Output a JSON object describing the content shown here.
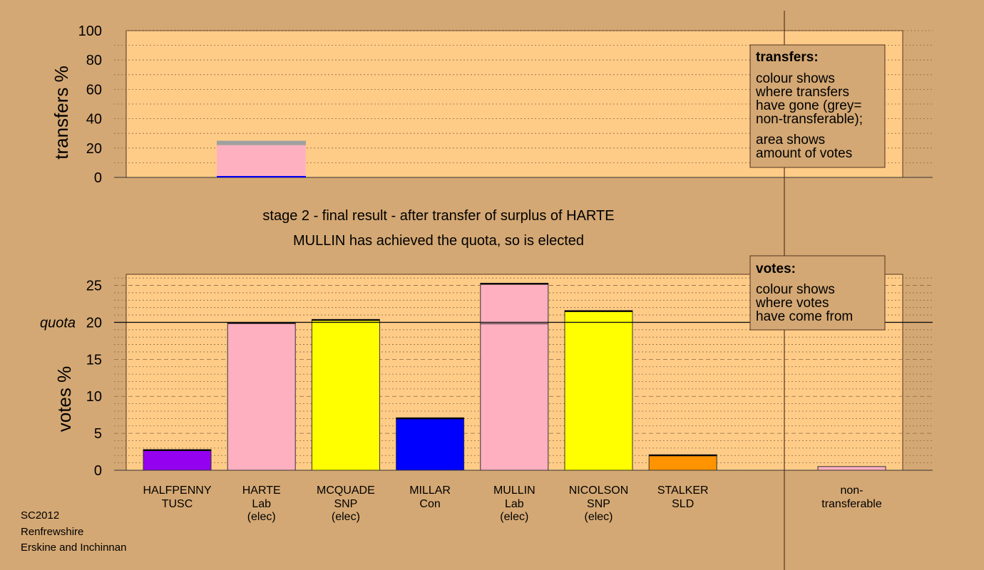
{
  "header": {
    "stage_line": "stage 2 - final result - after transfer of surplus of HARTE",
    "result_line": "MULLIN has achieved the quota, so is elected"
  },
  "footer": {
    "line1": "SC2012",
    "line2": "Renfrewshire",
    "line3": "Erskine and Inchinnan"
  },
  "legends": {
    "transfers": {
      "title": "transfers:",
      "lines": [
        "colour shows",
        "where transfers",
        "have gone (grey=",
        "non-transferable);"
      ],
      "lines2": [
        "area shows",
        "amount of votes"
      ]
    },
    "votes": {
      "title": "votes:",
      "lines": [
        "colour shows",
        "where votes",
        "have come from"
      ]
    }
  },
  "colors": {
    "background": "#d4a874",
    "plot_bg": "#ffcc88",
    "TUSC": "#9400f0",
    "Lab": "#ffb0c0",
    "SNP": "#ffff00",
    "Con": "#0000ff",
    "SLD": "#ff9400",
    "nontransferable": "#ffb0c0",
    "grey": "#a0a0a0"
  },
  "chart_data": [
    {
      "type": "bar",
      "name": "transfers",
      "ylabel": "transfers %",
      "ylim": [
        0,
        100
      ],
      "yticks": [
        "0",
        "20",
        "40",
        "60",
        "80",
        "100"
      ],
      "grid": true,
      "stacked_bar": {
        "source": "HARTE",
        "segments": [
          {
            "to": "Con",
            "color": "#0000ff",
            "value": 1
          },
          {
            "to": "Lab",
            "color": "#ffb0c0",
            "value": 21
          },
          {
            "to": "non-transferable",
            "color": "#a0a0a0",
            "value": 3
          }
        ]
      }
    },
    {
      "type": "bar",
      "name": "votes",
      "ylabel": "votes %",
      "ylim": [
        0,
        26.5
      ],
      "yticks": [
        "0",
        "5",
        "10",
        "15",
        "20",
        "25"
      ],
      "quota": {
        "label": "quota",
        "value": 20
      },
      "grid": true,
      "candidates": [
        {
          "name": "HALFPENNY",
          "party": "TUSC",
          "status": "",
          "color": "#9400f0",
          "value": 2.8,
          "transfer": 0
        },
        {
          "name": "HARTE",
          "party": "Lab",
          "status": "(elec)",
          "color": "#ffb0c0",
          "value": 20.0,
          "transfer": 0
        },
        {
          "name": "MCQUADE",
          "party": "SNP",
          "status": "(elec)",
          "color": "#ffff00",
          "value": 20.4,
          "transfer": 0
        },
        {
          "name": "MILLAR",
          "party": "Con",
          "status": "",
          "color": "#0000ff",
          "value": 7.1,
          "transfer": 0
        },
        {
          "name": "MULLIN",
          "party": "Lab",
          "status": "(elec)",
          "color": "#ffb0c0",
          "value": 19.8,
          "transfer": 5.5
        },
        {
          "name": "NICOLSON",
          "party": "SNP",
          "status": "(elec)",
          "color": "#ffff00",
          "value": 21.6,
          "transfer": 0
        },
        {
          "name": "STALKER",
          "party": "SLD",
          "status": "",
          "color": "#ff9400",
          "value": 2.1,
          "transfer": 0
        }
      ],
      "nontransferable": {
        "label1": "non-",
        "label2": "transferable",
        "value": 0.5,
        "color": "#ffb0c0"
      }
    }
  ]
}
